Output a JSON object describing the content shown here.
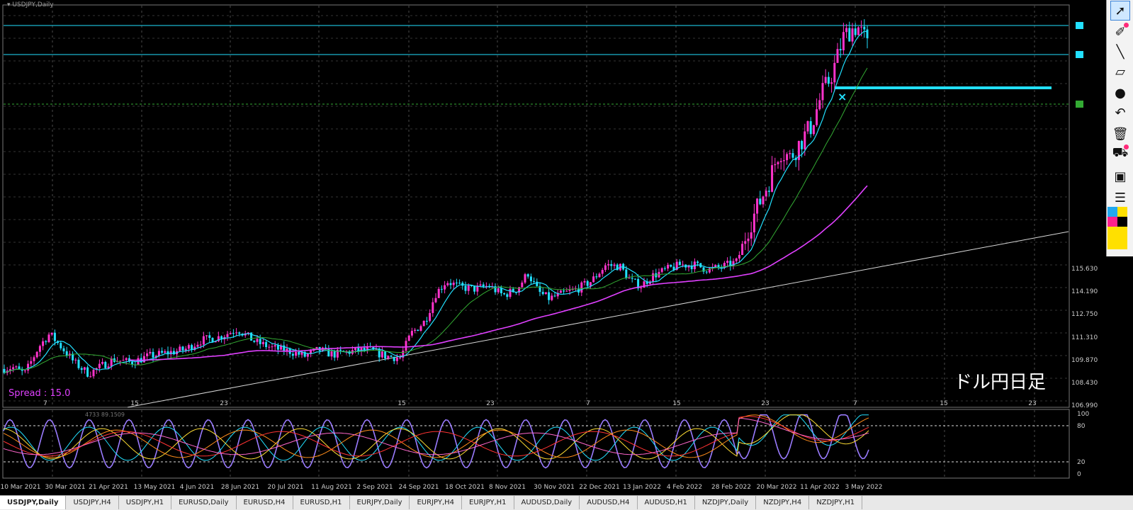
{
  "window": {
    "symbol_label": "USDJPY,Daily"
  },
  "annotation": {
    "caption": "ドル円日足",
    "spread_label": "Spread : 15.0"
  },
  "indicator": {
    "label": "4733 89.1509"
  },
  "colors": {
    "candle_up": "#ff33cc",
    "candle_down": "#22e0ff",
    "ma_fast": "#22e0ff",
    "ma_mid": "#33aa33",
    "ma_slow": "#e040ff",
    "hline": "#22e0ff",
    "trend": "#d8d8d8"
  },
  "tabs": [
    "USDJPY,Daily",
    "USDJPY,H4",
    "USDJPY,H1",
    "EURUSD,Daily",
    "EURUSD,H4",
    "EURUSD,H1",
    "EURJPY,Daily",
    "EURJPY,H4",
    "EURJPY,H1",
    "AUDUSD,Daily",
    "AUDUSD,H4",
    "AUDUSD,H1",
    "NZDJPY,Daily",
    "NZDJPY,H4",
    "NZDJPY,H1"
  ],
  "chart_data": {
    "type": "candlestick",
    "x_date_labels": [
      "10 Mar 2021",
      "30 Mar 2021",
      "21 Apr 2021",
      "13 May 2021",
      "4 Jun 2021",
      "28 Jun 2021",
      "20 Jul 2021",
      "11 Aug 2021",
      "2 Sep 2021",
      "24 Sep 2021",
      "18 Oct 2021",
      "8 Nov 2021",
      "30 Nov 2021",
      "22 Dec 2021",
      "13 Jan 2022",
      "4 Feb 2022",
      "28 Feb 2022",
      "20 Mar 2022",
      "11 Apr 2022",
      "3 May 2022"
    ],
    "x_day_ticks": [
      "7",
      "15",
      "23",
      "15",
      "23",
      "7",
      "15",
      "23",
      "7",
      "15",
      "23"
    ],
    "y_tick_labels": [
      "115.630",
      "114.190",
      "112.750",
      "111.310",
      "109.870",
      "108.430",
      "106.990"
    ],
    "y_range": [
      106.45,
      131.5
    ],
    "price_path": [
      [
        0,
        108.8
      ],
      [
        18,
        108.9
      ],
      [
        35,
        108.5
      ],
      [
        55,
        110.2
      ],
      [
        70,
        111.0
      ],
      [
        90,
        110.0
      ],
      [
        105,
        109.2
      ],
      [
        125,
        108.5
      ],
      [
        140,
        108.9
      ],
      [
        160,
        109.4
      ],
      [
        185,
        109.2
      ],
      [
        210,
        109.6
      ],
      [
        235,
        109.8
      ],
      [
        260,
        110.0
      ],
      [
        285,
        110.6
      ],
      [
        310,
        110.8
      ],
      [
        335,
        111.3
      ],
      [
        360,
        110.5
      ],
      [
        385,
        110.1
      ],
      [
        410,
        109.9
      ],
      [
        430,
        109.6
      ],
      [
        450,
        110.0
      ],
      [
        470,
        109.7
      ],
      [
        495,
        109.9
      ],
      [
        520,
        110.0
      ],
      [
        545,
        109.6
      ],
      [
        565,
        109.5
      ],
      [
        580,
        111.0
      ],
      [
        600,
        111.8
      ],
      [
        615,
        113.5
      ],
      [
        630,
        114.3
      ],
      [
        650,
        113.9
      ],
      [
        670,
        113.8
      ],
      [
        690,
        114.0
      ],
      [
        710,
        113.4
      ],
      [
        730,
        113.8
      ],
      [
        745,
        114.8
      ],
      [
        760,
        113.6
      ],
      [
        775,
        113.2
      ],
      [
        795,
        113.5
      ],
      [
        815,
        113.8
      ],
      [
        835,
        114.3
      ],
      [
        855,
        115.3
      ],
      [
        875,
        115.2
      ],
      [
        890,
        114.3
      ],
      [
        905,
        114.0
      ],
      [
        920,
        114.6
      ],
      [
        940,
        115.0
      ],
      [
        960,
        115.3
      ],
      [
        980,
        115.3
      ],
      [
        1000,
        115.0
      ],
      [
        1020,
        115.2
      ],
      [
        1040,
        115.5
      ],
      [
        1055,
        117.5
      ],
      [
        1070,
        119.0
      ],
      [
        1085,
        120.5
      ],
      [
        1100,
        122.5
      ],
      [
        1115,
        122.0
      ],
      [
        1130,
        123.0
      ],
      [
        1145,
        124.0
      ],
      [
        1160,
        126.0
      ],
      [
        1172,
        127.0
      ],
      [
        1180,
        128.0
      ],
      [
        1190,
        129.5
      ],
      [
        1200,
        130.0
      ],
      [
        1210,
        130.2
      ],
      [
        1220,
        129.5
      ],
      [
        1228,
        128.5
      ]
    ],
    "series": [
      {
        "name": "",
        "kind": "ma_fast"
      },
      {
        "name": "",
        "kind": "ma_mid"
      },
      {
        "name": "",
        "kind": "ma_slow"
      }
    ],
    "stochastic": {
      "levels": [
        100,
        80,
        20,
        0
      ]
    }
  }
}
